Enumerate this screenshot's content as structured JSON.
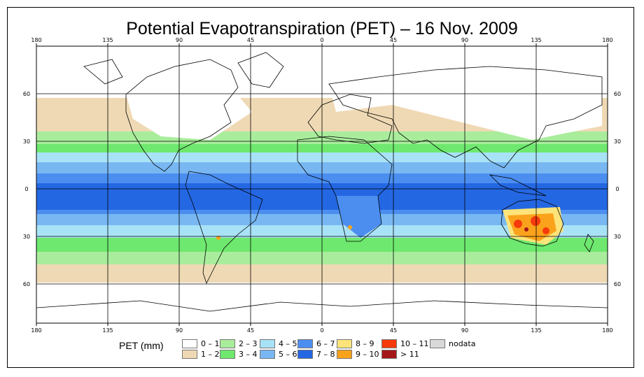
{
  "title": "Potential Evapotranspiration (PET) – 16 Nov. 2009",
  "lon_labels": [
    "180",
    "135",
    "90",
    "45",
    "0",
    "45",
    "90",
    "135",
    "180"
  ],
  "lat_labels": [
    "60",
    "30",
    "0",
    "30",
    "60"
  ],
  "legend": {
    "title": "PET (mm)",
    "items": [
      {
        "label": "0 – 1",
        "color": "#ffffff"
      },
      {
        "label": "1 – 2",
        "color": "#efd9b4"
      },
      {
        "label": "2 – 3",
        "color": "#a9ed9c"
      },
      {
        "label": "3 – 4",
        "color": "#6ee86e"
      },
      {
        "label": "4 – 5",
        "color": "#a8e2f7"
      },
      {
        "label": "5 – 6",
        "color": "#78b7f2"
      },
      {
        "label": "6 – 7",
        "color": "#4b8ef0"
      },
      {
        "label": "7 – 8",
        "color": "#2467e3"
      },
      {
        "label": "8 – 9",
        "color": "#fde47a"
      },
      {
        "label": "9 – 10",
        "color": "#fba21c"
      },
      {
        "label": "10 – 11",
        "color": "#f53a0b"
      },
      {
        "label": "> 11",
        "color": "#a3171b"
      },
      {
        "label": "nodata",
        "color": "#d9d9d9"
      }
    ]
  }
}
